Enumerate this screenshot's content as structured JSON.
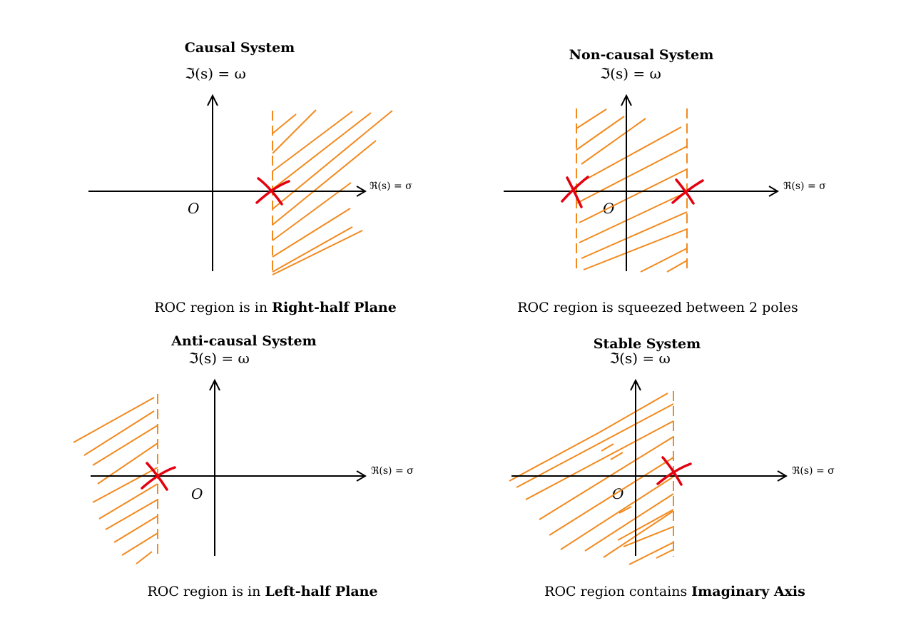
{
  "colors": {
    "roc": "#f28a1e",
    "pole": "#e3000f",
    "axis": "#000000"
  },
  "panels": [
    {
      "title": "Causal System",
      "im_axis_label": "ℑ(s) = ω",
      "re_axis_label": "ℜ(s) = σ",
      "origin_label": "O",
      "caption_prefix": "ROC region is in ",
      "caption_bold": "Right-half Plane",
      "roc": "right-half",
      "poles_sigma": [
        1
      ]
    },
    {
      "title": "Non-causal System",
      "im_axis_label": "ℑ(s) = ω",
      "re_axis_label": "ℜ(s) = σ",
      "origin_label": "O",
      "caption_prefix": "ROC region is squeezed between 2 poles",
      "caption_bold": "",
      "roc": "strip",
      "poles_sigma": [
        -1,
        1
      ]
    },
    {
      "title": "Anti-causal System",
      "im_axis_label": "ℑ(s) = ω",
      "re_axis_label": "ℜ(s) = σ",
      "origin_label": "O",
      "caption_prefix": "ROC region is in ",
      "caption_bold": "Left-half Plane",
      "roc": "left-half",
      "poles_sigma": [
        -1
      ]
    },
    {
      "title": "Stable System",
      "im_axis_label": "ℑ(s) = ω",
      "re_axis_label": "ℜ(s) = σ",
      "origin_label": "O",
      "caption_prefix": "ROC region contains ",
      "caption_bold": "Imaginary Axis",
      "roc": "left-of-pole-including-imaginary-axis",
      "poles_sigma": [
        1
      ]
    }
  ]
}
